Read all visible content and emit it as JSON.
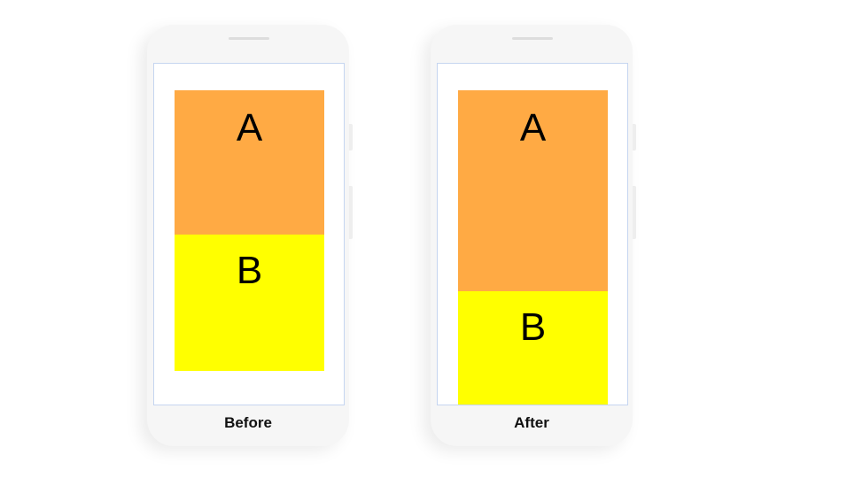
{
  "phones": [
    {
      "label": "Before",
      "box_a": "A",
      "box_b": "B"
    },
    {
      "label": "After",
      "box_a": "A",
      "box_b": "B"
    }
  ],
  "colors": {
    "box_a": "#ffaa44",
    "box_b": "#ffff00",
    "screen_border": "#c5d5f0"
  }
}
